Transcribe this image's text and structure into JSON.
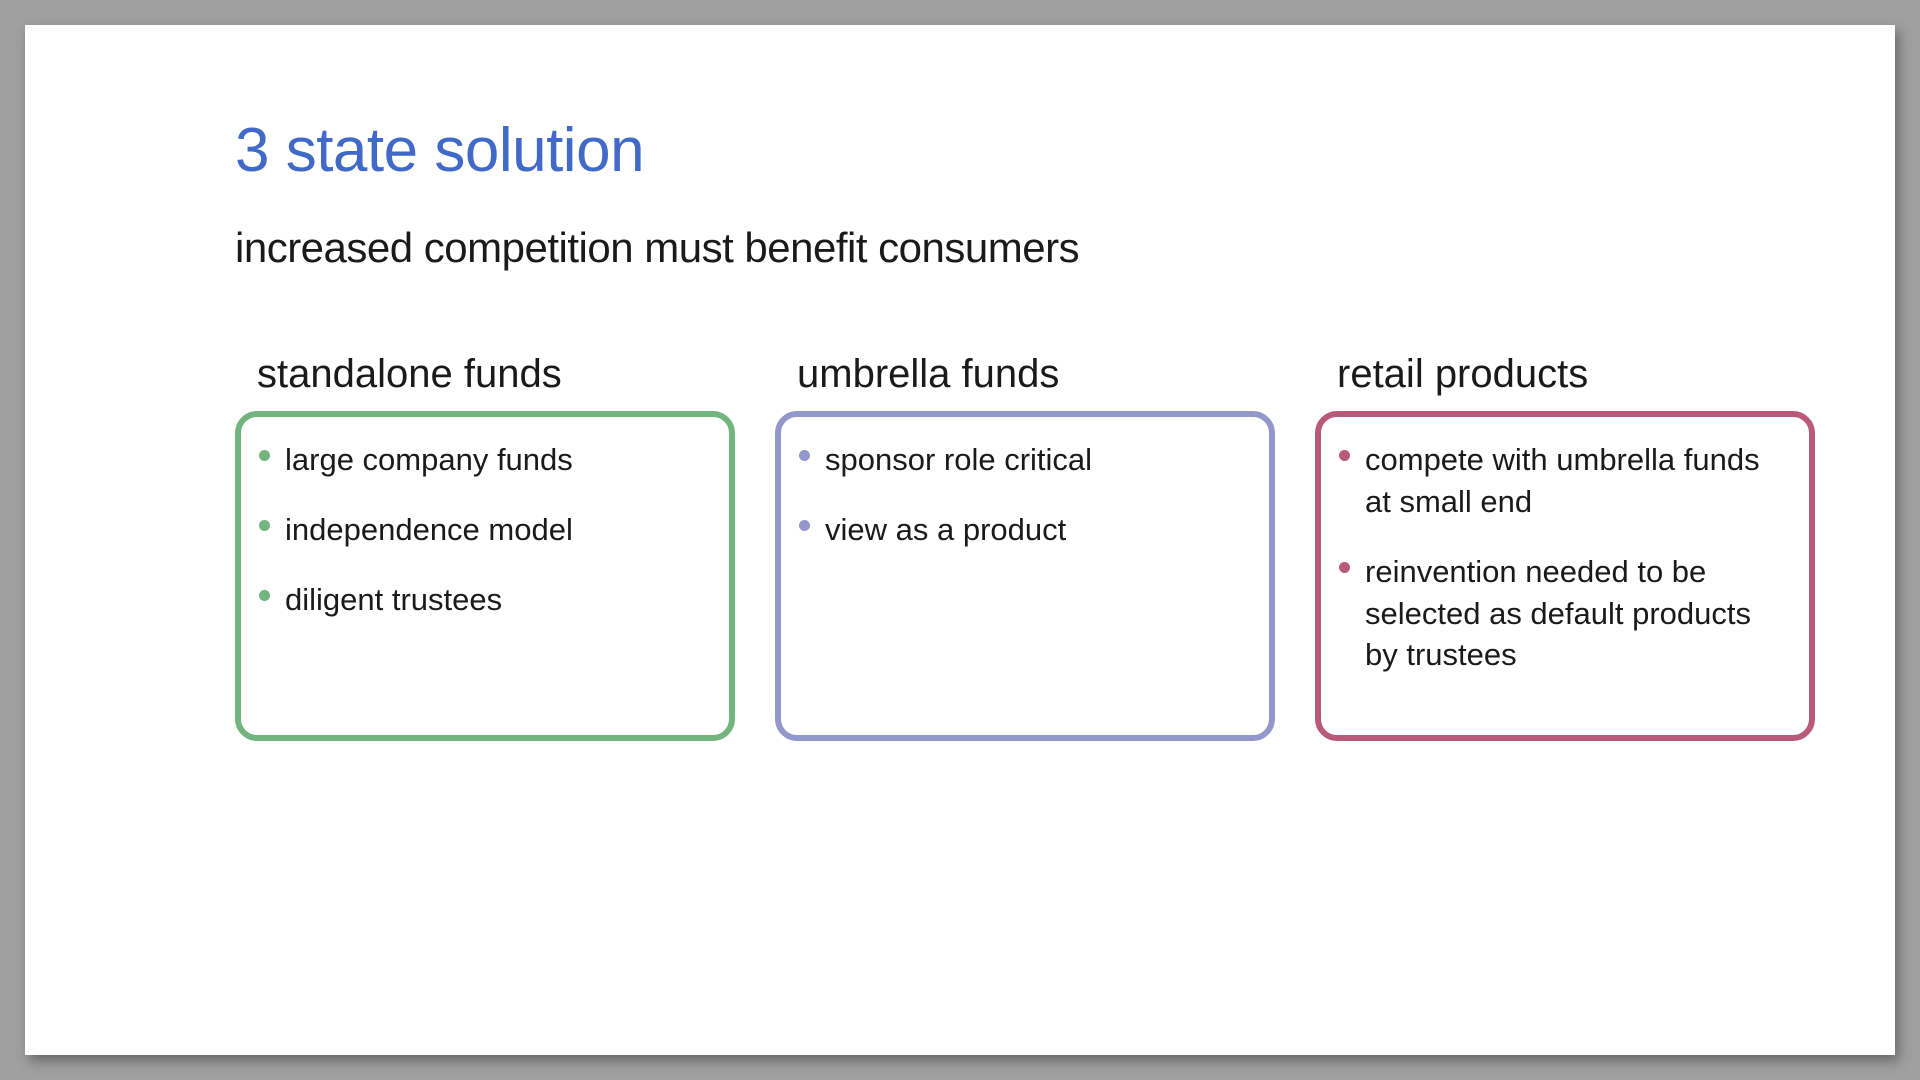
{
  "page_background": "#a0a0a0",
  "slide_background": "#ffffff",
  "title": {
    "text": "3 state solution",
    "color": "#4169c8",
    "fontsize": 62
  },
  "subtitle": {
    "text": "increased competition must benefit consumers",
    "color": "#1a1a1a",
    "fontsize": 42
  },
  "columns": [
    {
      "heading": "standalone funds",
      "border_color": "#74b47e",
      "bullet_color": "#74b47e",
      "items": [
        "large company funds",
        "independence model",
        "diligent trustees"
      ]
    },
    {
      "heading": "umbrella funds",
      "border_color": "#9398cc",
      "bullet_color": "#9398cc",
      "items": [
        "sponsor role critical",
        "view as a product"
      ]
    },
    {
      "heading": "retail products",
      "border_color": "#b95a7a",
      "bullet_color": "#b95a7a",
      "items": [
        "compete with umbrella funds at small end",
        "reinvention needed  to be selected as default products by trustees"
      ]
    }
  ],
  "card_border_width": 6,
  "card_border_radius": 22,
  "card_min_height": 330,
  "body_fontsize": 31,
  "heading_fontsize": 40
}
